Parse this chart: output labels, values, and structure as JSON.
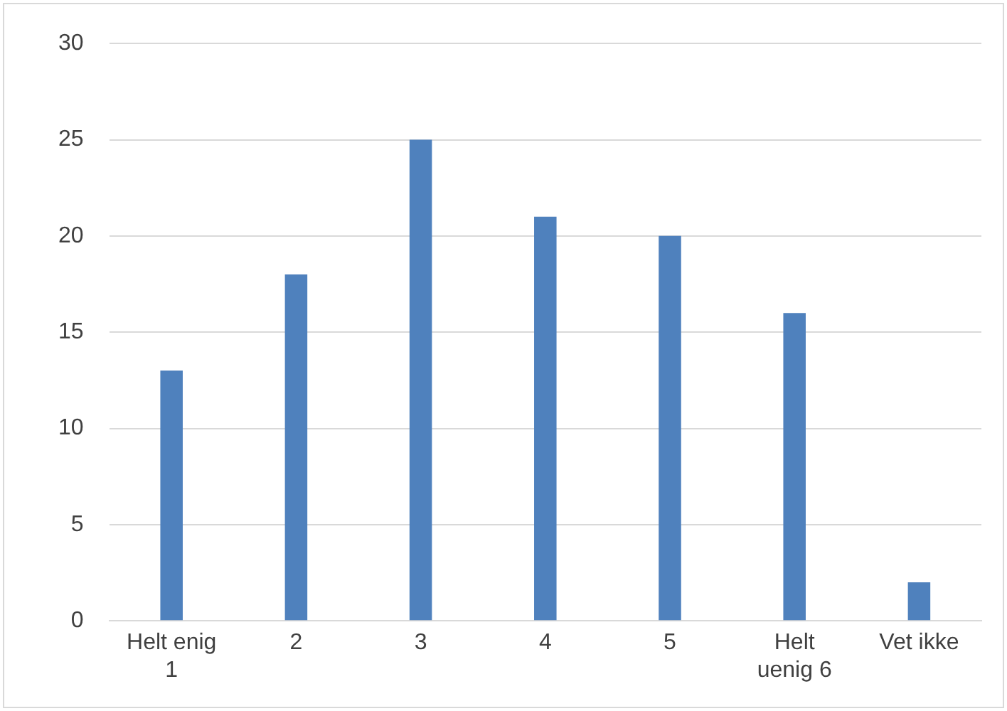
{
  "chart_data": {
    "type": "bar",
    "categories": [
      "Helt enig 1",
      "2",
      "3",
      "4",
      "5",
      "Helt uenig 6",
      "Vet ikke"
    ],
    "values": [
      13,
      18,
      25,
      21,
      20,
      16,
      2
    ],
    "color": "#4f81bd",
    "ylim": [
      0,
      30
    ],
    "yticks": [
      0,
      5,
      10,
      15,
      20,
      25,
      30
    ],
    "grid": "y"
  }
}
